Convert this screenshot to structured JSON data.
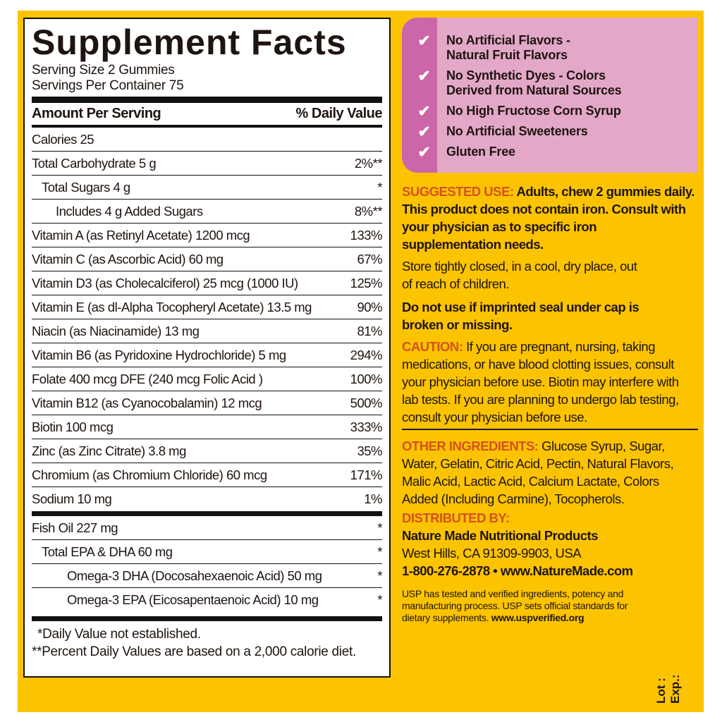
{
  "facts": {
    "title": "Supplement Facts",
    "serving_size": "Serving Size 2 Gummies",
    "servings_per_container": "Servings Per Container 75",
    "header_amount": "Amount Per Serving",
    "header_dv": "% Daily Value",
    "rows": [
      {
        "name": "Calories 25",
        "dv": "",
        "indent": 0
      },
      {
        "name": "Total Carbohydrate  5 g",
        "dv": "2%**",
        "indent": 0
      },
      {
        "name": "Total Sugars  4 g",
        "dv": "*",
        "indent": 1
      },
      {
        "name": "Includes  4 g Added Sugars",
        "dv": "8%**",
        "indent": 2
      },
      {
        "name": "Vitamin A (as Retinyl Acetate)  1200 mcg",
        "dv": "133%",
        "indent": 0
      },
      {
        "name": "Vitamin C (as Ascorbic Acid)  60 mg",
        "dv": "67%",
        "indent": 0
      },
      {
        "name": "Vitamin D3 (as Cholecalciferol) 25 mcg (1000 IU)",
        "dv": "125%",
        "indent": 0
      },
      {
        "name": "Vitamin E (as dl-Alpha Tocopheryl Acetate) 13.5 mg",
        "dv": "90%",
        "indent": 0
      },
      {
        "name": "Niacin (as Niacinamide)  13 mg",
        "dv": "81%",
        "indent": 0
      },
      {
        "name": "Vitamin B6 (as Pyridoxine Hydrochloride)  5 mg",
        "dv": "294%",
        "indent": 0
      },
      {
        "name": "Folate  400 mcg DFE (240 mcg Folic Acid )",
        "dv": "100%",
        "indent": 0
      },
      {
        "name": "Vitamin B12 (as Cyanocobalamin)  12 mcg",
        "dv": "500%",
        "indent": 0
      },
      {
        "name": "Biotin  100 mcg",
        "dv": "333%",
        "indent": 0
      },
      {
        "name": "Zinc (as Zinc Citrate)  3.8 mg",
        "dv": "35%",
        "indent": 0
      },
      {
        "name": "Chromium (as Chromium Chloride)  60 mcg",
        "dv": "171%",
        "indent": 0
      },
      {
        "name": "Sodium  10 mg",
        "dv": "1%",
        "indent": 0
      }
    ],
    "rows2": [
      {
        "name": "Fish Oil  227 mg",
        "dv": "*",
        "indent": 0
      },
      {
        "name": "Total EPA & DHA  60 mg",
        "dv": "*",
        "indent": 1
      },
      {
        "name": "Omega-3 DHA (Docosahexaenoic Acid)  50 mg",
        "dv": "*",
        "indent": 2
      },
      {
        "name": "Omega-3 EPA (Eicosapentaenoic Acid)  10 mg",
        "dv": "*",
        "indent": 2
      }
    ],
    "footnote1": "*Daily Value not established.",
    "footnote2": "**Percent Daily Values are based on a 2,000 calorie diet."
  },
  "claims": [
    {
      "line1": "No Artificial Flavors -",
      "line2": "Natural Fruit Flavors"
    },
    {
      "line1": "No Synthetic Dyes - Colors",
      "line2": "Derived from Natural Sources"
    },
    {
      "line1": "No High Fructose Corn Syrup",
      "line2": ""
    },
    {
      "line1": "No Artificial Sweeteners",
      "line2": ""
    },
    {
      "line1": "Gluten Free",
      "line2": ""
    }
  ],
  "claim_icon": "check-icon",
  "suggested": {
    "label": "SUGGESTED USE:",
    "text": " Adults, chew 2 gummies daily. This product does not contain iron. Consult with your physician as to specific iron supplementation needs."
  },
  "storage": "Store tightly closed, in a cool, dry place, out of reach of children.",
  "seal": "Do not use if imprinted seal under cap is broken or missing.",
  "caution": {
    "label": "CAUTION:",
    "text": " If you are pregnant, nursing, taking medications, or have blood clotting issues, consult your physician before use. Biotin may interfere with lab tests. If you are planning to undergo lab testing, consult your physician before use."
  },
  "ingredients": {
    "label": "OTHER INGREDIENTS:",
    "text": " Glucose Syrup, Sugar, Water, Gelatin, Citric Acid, Pectin, Natural Flavors, Malic Acid, Lactic Acid, Calcium Lactate, Colors Added (Including Carmine), Tocopherols."
  },
  "distributor": {
    "label": "DISTRIBUTED BY:",
    "name": "Nature Made Nutritional Products",
    "address": "West Hills, CA 91309-9903, USA",
    "contact": "1-800-276-2878 • www.NatureMade.com"
  },
  "usp": {
    "text": "USP has tested and verified ingredients, potency and manufacturing process. USP sets official standards for dietary supplements. ",
    "url": "www.uspverified.org"
  },
  "lot": "Lot :",
  "exp": "Exp.:",
  "colors": {
    "background": "#fcc400",
    "pink": "#e3a8c8",
    "pink_dark": "#cc66a8",
    "heading_orange": "#d4521c"
  }
}
